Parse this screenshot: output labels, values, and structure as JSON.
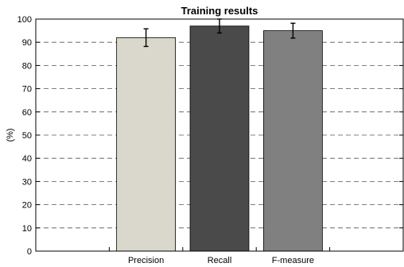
{
  "chart_data": {
    "type": "bar",
    "title": "Training results",
    "xlabel": "",
    "ylabel": "(%)",
    "ylim": [
      0,
      100
    ],
    "yticks": [
      0,
      10,
      20,
      30,
      40,
      50,
      60,
      70,
      80,
      90,
      100
    ],
    "grid": "horizontal dashed",
    "categories": [
      "Precision",
      "Recall",
      "F-measure"
    ],
    "values": [
      92,
      97,
      95
    ],
    "errors": [
      3.8,
      3.0,
      3.2
    ],
    "colors": [
      "#dad8cc",
      "#4a4a4a",
      "#808080"
    ]
  }
}
